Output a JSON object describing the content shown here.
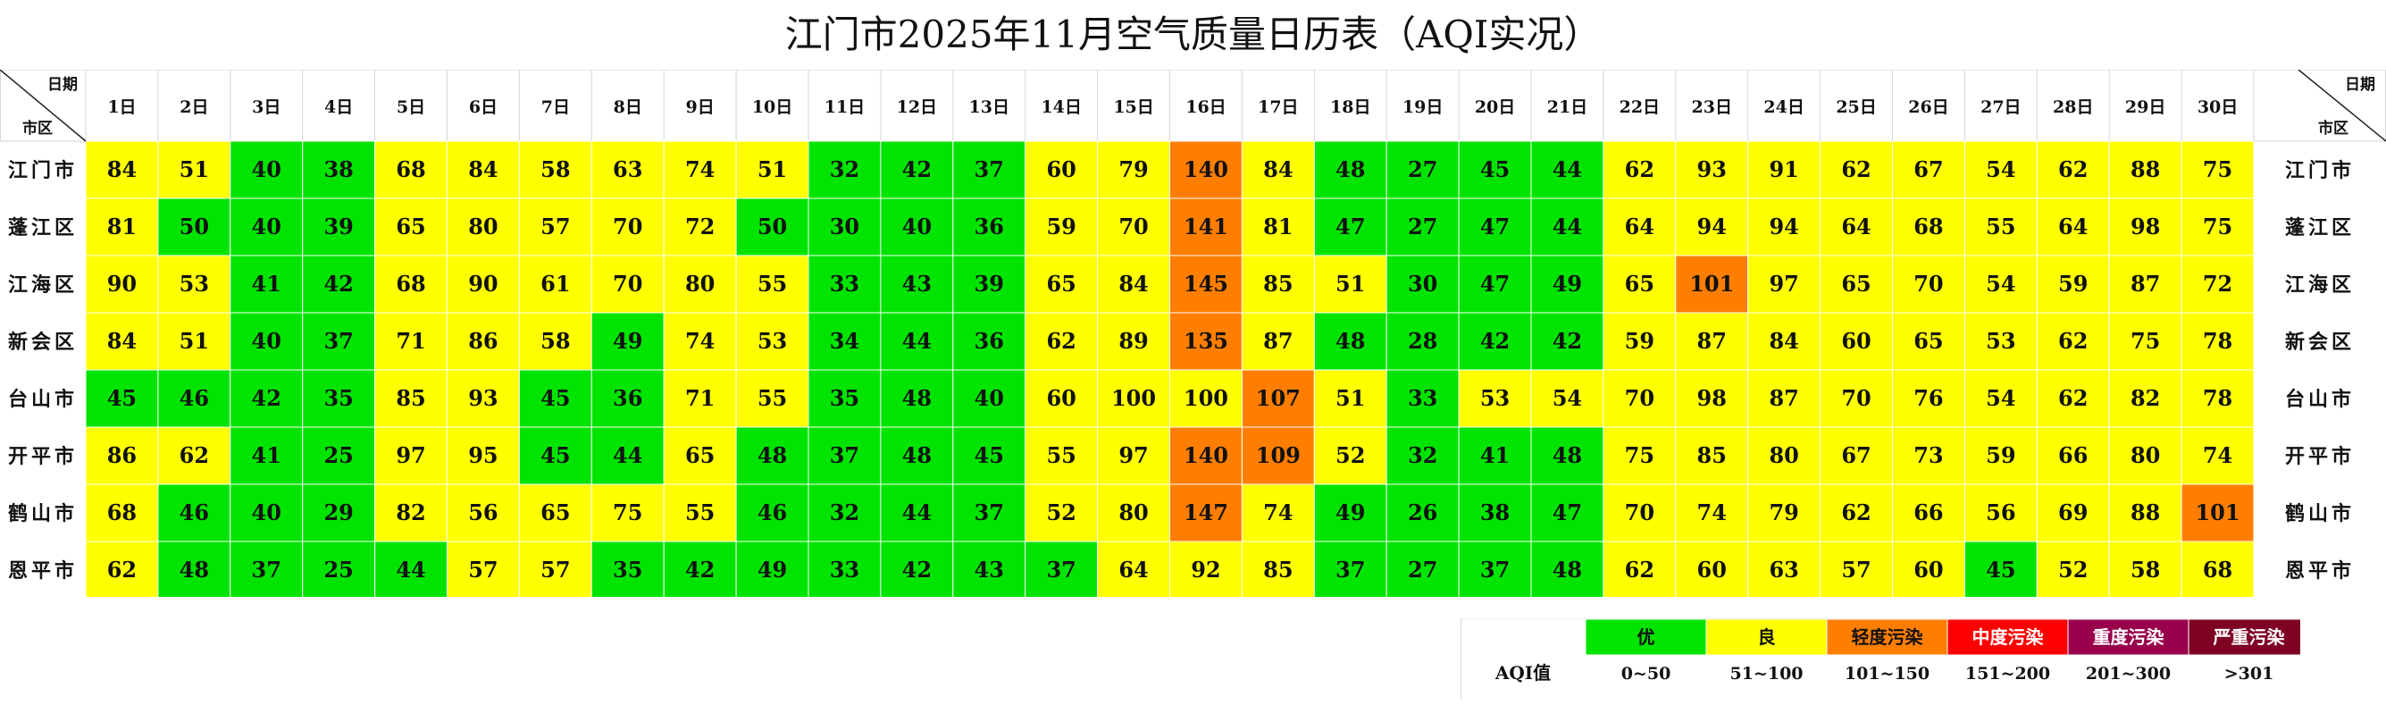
{
  "title": "江门市2025年11月空气质量日历表（AQI实况）",
  "corner": {
    "top": "日期",
    "bottom": "市区"
  },
  "chart_data": {
    "type": "heatmap",
    "title": "江门市2025年11月空气质量日历表（AQI实况）",
    "x": [
      "1日",
      "2日",
      "3日",
      "4日",
      "5日",
      "6日",
      "7日",
      "8日",
      "9日",
      "10日",
      "11日",
      "12日",
      "13日",
      "14日",
      "15日",
      "16日",
      "17日",
      "18日",
      "19日",
      "20日",
      "21日",
      "22日",
      "23日",
      "24日",
      "25日",
      "26日",
      "27日",
      "28日",
      "29日",
      "30日"
    ],
    "y": [
      "江门市",
      "蓬江区",
      "江海区",
      "新会区",
      "台山市",
      "开平市",
      "鹤山市",
      "恩平市"
    ],
    "values": [
      [
        84,
        51,
        40,
        38,
        68,
        84,
        58,
        63,
        74,
        51,
        32,
        42,
        37,
        60,
        79,
        140,
        84,
        48,
        27,
        45,
        44,
        62,
        93,
        91,
        62,
        67,
        54,
        62,
        88,
        75
      ],
      [
        81,
        50,
        40,
        39,
        65,
        80,
        57,
        70,
        72,
        50,
        30,
        40,
        36,
        59,
        70,
        141,
        81,
        47,
        27,
        47,
        44,
        64,
        94,
        94,
        64,
        68,
        55,
        64,
        98,
        75
      ],
      [
        90,
        53,
        41,
        42,
        68,
        90,
        61,
        70,
        80,
        55,
        33,
        43,
        39,
        65,
        84,
        145,
        85,
        51,
        30,
        47,
        49,
        65,
        101,
        97,
        65,
        70,
        54,
        59,
        87,
        72
      ],
      [
        84,
        51,
        40,
        37,
        71,
        86,
        58,
        49,
        74,
        53,
        34,
        44,
        36,
        62,
        89,
        135,
        87,
        48,
        28,
        42,
        42,
        59,
        87,
        84,
        60,
        65,
        53,
        62,
        75,
        78
      ],
      [
        45,
        46,
        42,
        35,
        85,
        93,
        45,
        36,
        71,
        55,
        35,
        48,
        40,
        60,
        100,
        100,
        107,
        51,
        33,
        53,
        54,
        70,
        98,
        87,
        70,
        76,
        54,
        62,
        82,
        78
      ],
      [
        86,
        62,
        41,
        25,
        97,
        95,
        45,
        44,
        65,
        48,
        37,
        48,
        45,
        55,
        97,
        140,
        109,
        52,
        32,
        41,
        48,
        75,
        85,
        80,
        67,
        73,
        59,
        66,
        80,
        74
      ],
      [
        68,
        46,
        40,
        29,
        82,
        56,
        65,
        75,
        55,
        46,
        32,
        44,
        37,
        52,
        80,
        147,
        74,
        49,
        26,
        38,
        47,
        70,
        74,
        79,
        62,
        66,
        56,
        69,
        88,
        101
      ],
      [
        62,
        48,
        37,
        25,
        44,
        57,
        57,
        35,
        42,
        49,
        33,
        42,
        43,
        37,
        64,
        92,
        85,
        37,
        27,
        37,
        48,
        62,
        60,
        63,
        57,
        60,
        45,
        52,
        58,
        68
      ]
    ]
  },
  "legend": {
    "label": "AQI值",
    "levels": [
      {
        "name": "优",
        "range": "0~50",
        "max": 50,
        "color": "#00e400"
      },
      {
        "name": "良",
        "range": "51~100",
        "max": 100,
        "color": "#ffff00"
      },
      {
        "name": "轻度污染",
        "range": "101~150",
        "max": 150,
        "color": "#ff7e00"
      },
      {
        "name": "中度污染",
        "range": "151~200",
        "max": 200,
        "color": "#ff0000"
      },
      {
        "name": "重度污染",
        "range": "201~300",
        "max": 300,
        "color": "#99004c"
      },
      {
        "name": "严重污染",
        "range": ">301",
        "max": 100000,
        "color": "#7e0023"
      }
    ]
  }
}
